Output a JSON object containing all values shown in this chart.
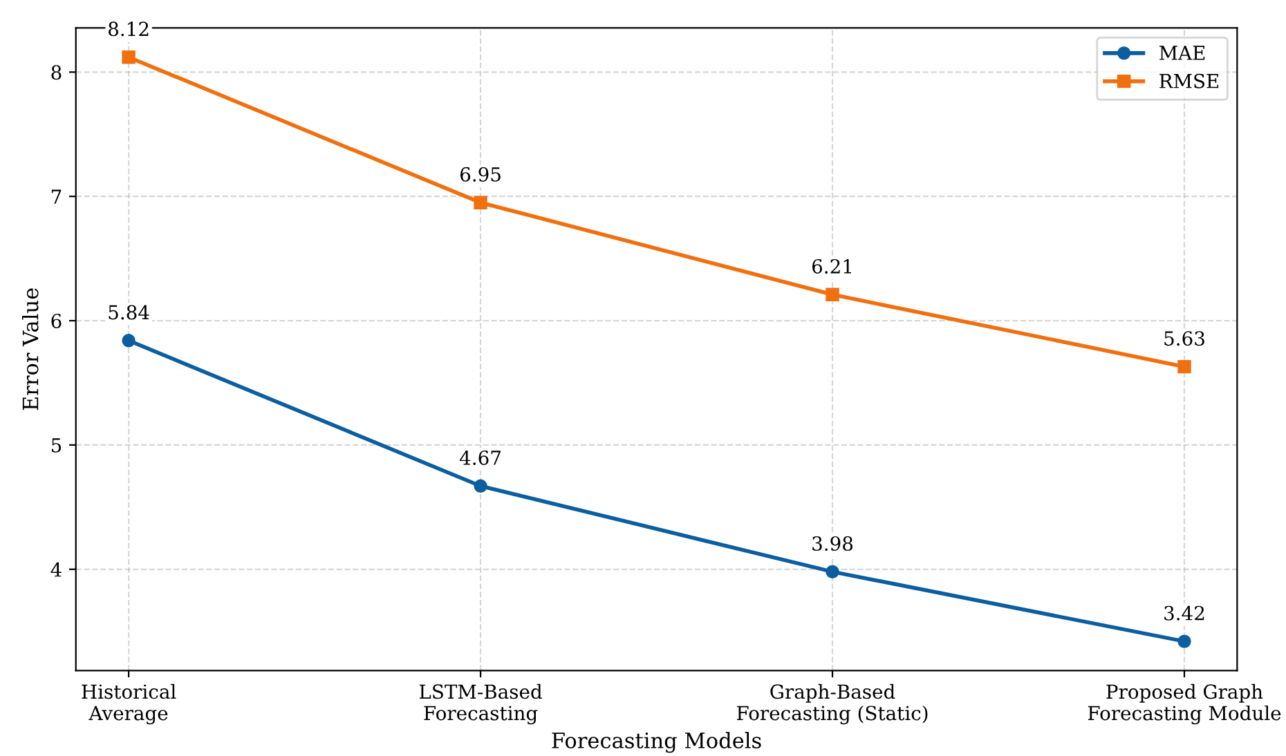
{
  "chart_data": {
    "type": "line",
    "xlabel": "Forecasting Models",
    "ylabel": "Error Value",
    "categories": [
      "Historical\nAverage",
      "LSTM-Based\nForecasting",
      "Graph-Based\nForecasting (Static)",
      "Proposed Graph\nForecasting Module"
    ],
    "series": [
      {
        "name": "MAE",
        "color": "#0b5ea0",
        "marker": "circle",
        "values": [
          5.84,
          4.67,
          3.98,
          3.42
        ]
      },
      {
        "name": "RMSE",
        "color": "#f07010",
        "marker": "square",
        "values": [
          8.12,
          6.95,
          6.21,
          5.63
        ]
      }
    ],
    "ylim": [
      3.185,
      8.355
    ],
    "yticks": [
      4,
      5,
      6,
      7,
      8
    ],
    "grid": true,
    "legend": "top right",
    "data_labels": true,
    "line_style": "solid"
  }
}
